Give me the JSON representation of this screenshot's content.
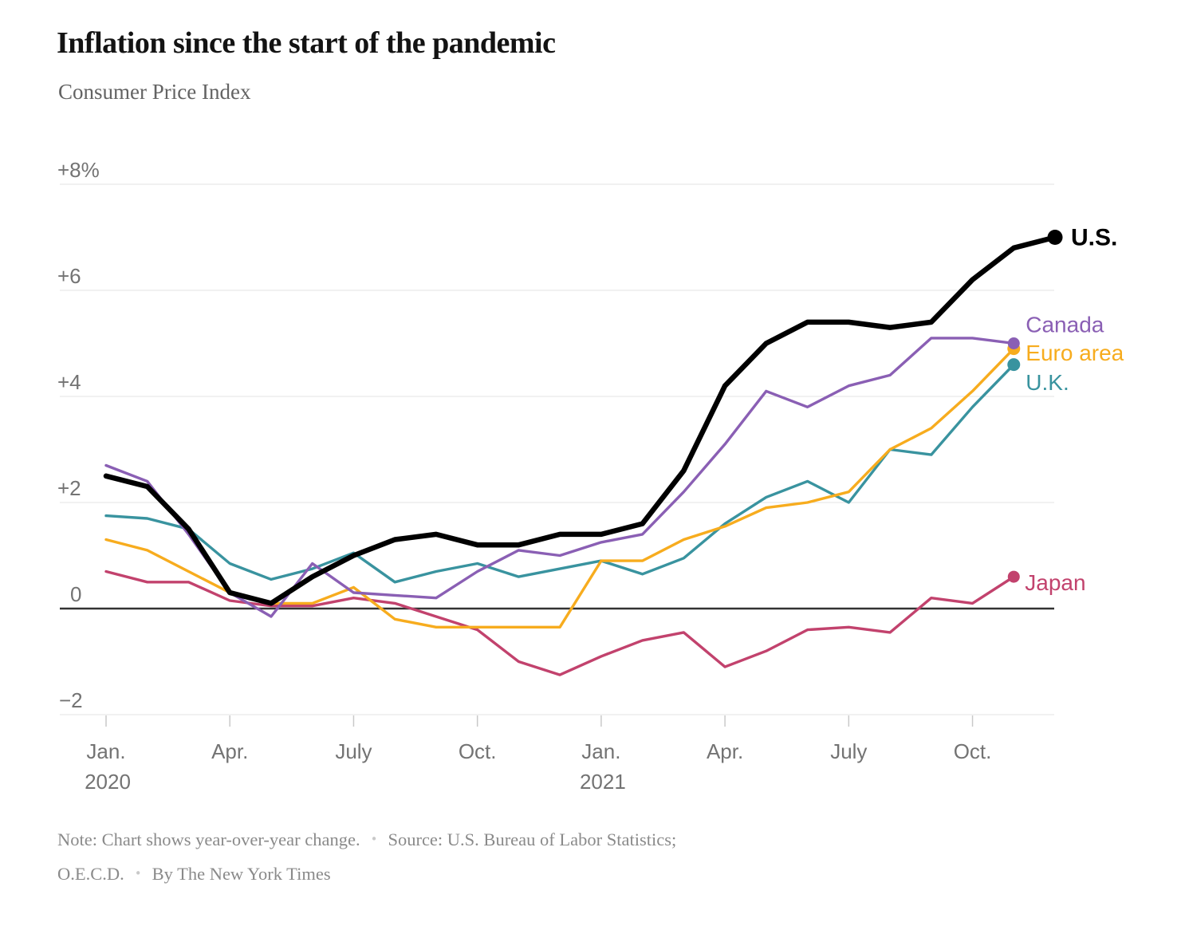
{
  "title": "Inflation since the start of the pandemic",
  "subtitle": "Consumer Price Index",
  "footer": {
    "note": "Note: Chart shows year-over-year change.",
    "separator": "•",
    "source": "Source: U.S. Bureau of Labor Statistics;",
    "source2": "O.E.C.D.",
    "byline": "By The New York Times"
  },
  "chart_data": {
    "type": "line",
    "title": "Inflation since the start of the pandemic",
    "subtitle": "Consumer Price Index",
    "x_start": "2020-01",
    "x_interval": "monthly",
    "grid": "horizontal",
    "legend_position": "line-end-labels",
    "ylim": [
      -2.7,
      8.6
    ],
    "y_ticks": [
      {
        "label": "+8%",
        "value": 8
      },
      {
        "label": "+6",
        "value": 6
      },
      {
        "label": "+4",
        "value": 4
      },
      {
        "label": "+2",
        "value": 2
      },
      {
        "label": "0",
        "value": 0
      },
      {
        "label": "−2",
        "value": -2
      }
    ],
    "x_ticks": [
      {
        "label": "Jan.",
        "sublabel": "2020",
        "month": 0
      },
      {
        "label": "Apr.",
        "sublabel": "",
        "month": 3
      },
      {
        "label": "July",
        "sublabel": "",
        "month": 6
      },
      {
        "label": "Oct.",
        "sublabel": "",
        "month": 9
      },
      {
        "label": "Jan.",
        "sublabel": "2021",
        "month": 12
      },
      {
        "label": "Apr.",
        "sublabel": "",
        "month": 15
      },
      {
        "label": "July",
        "sublabel": "",
        "month": 18
      },
      {
        "label": "Oct.",
        "sublabel": "",
        "month": 21
      }
    ],
    "series": [
      {
        "name": "Japan",
        "color": "#c2426d",
        "emphasis": false,
        "values": [
          0.7,
          0.5,
          0.5,
          0.15,
          0.05,
          0.05,
          0.2,
          0.1,
          -0.15,
          -0.4,
          -1.0,
          -1.25,
          -0.9,
          -0.6,
          -0.45,
          -1.1,
          -0.8,
          -0.4,
          -0.35,
          -0.45,
          0.2,
          0.1,
          0.6
        ]
      },
      {
        "name": "U.K.",
        "color": "#39939f",
        "emphasis": false,
        "values": [
          1.75,
          1.7,
          1.5,
          0.85,
          0.55,
          0.75,
          1.05,
          0.5,
          0.7,
          0.85,
          0.6,
          0.75,
          0.9,
          0.65,
          0.95,
          1.6,
          2.1,
          2.4,
          2.0,
          3.0,
          2.9,
          3.8,
          4.6
        ]
      },
      {
        "name": "Euro area",
        "color": "#f7ac1e",
        "emphasis": false,
        "values": [
          1.3,
          1.1,
          0.7,
          0.3,
          0.1,
          0.1,
          0.4,
          -0.2,
          -0.35,
          -0.35,
          -0.35,
          -0.35,
          0.9,
          0.9,
          1.3,
          1.55,
          1.9,
          2.0,
          2.2,
          3.0,
          3.4,
          4.1,
          4.9
        ]
      },
      {
        "name": "Canada",
        "color": "#8a5fb4",
        "emphasis": false,
        "values": [
          2.7,
          2.4,
          1.4,
          0.3,
          -0.15,
          0.85,
          0.3,
          0.25,
          0.2,
          0.7,
          1.1,
          1.0,
          1.25,
          1.4,
          2.2,
          3.1,
          4.1,
          3.8,
          4.2,
          4.4,
          5.1,
          5.1,
          5.0
        ]
      },
      {
        "name": "U.S.",
        "color": "#000000",
        "emphasis": true,
        "values": [
          2.5,
          2.3,
          1.5,
          0.3,
          0.1,
          0.6,
          1.0,
          1.3,
          1.4,
          1.2,
          1.2,
          1.4,
          1.4,
          1.6,
          2.6,
          4.2,
          5.0,
          5.4,
          5.4,
          5.3,
          5.4,
          6.2,
          6.8,
          7.0
        ]
      }
    ]
  }
}
